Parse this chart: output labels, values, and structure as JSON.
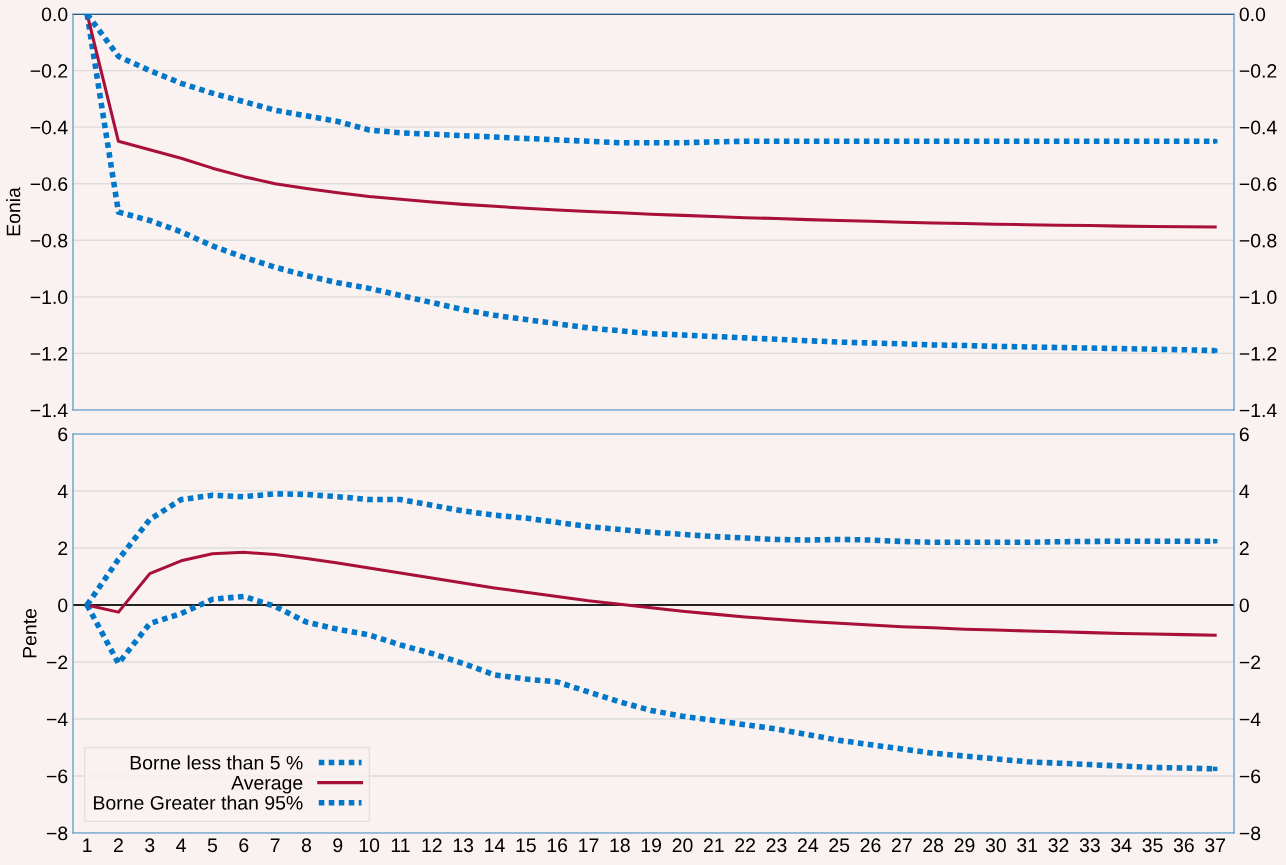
{
  "chart_data": [
    {
      "type": "line",
      "ylabel": "Eonia",
      "categories": [
        "1",
        "2",
        "3",
        "4",
        "5",
        "6",
        "7",
        "8",
        "9",
        "10",
        "11",
        "12",
        "13",
        "14",
        "15",
        "16",
        "17",
        "18",
        "19",
        "20",
        "21",
        "22",
        "23",
        "24",
        "25",
        "26",
        "27",
        "28",
        "29",
        "30",
        "31",
        "32",
        "33",
        "34",
        "35",
        "36",
        "37"
      ],
      "ylim": [
        -1.4,
        0
      ],
      "yticks": [
        {
          "value": -1.4,
          "label": "−1.4"
        },
        {
          "value": -1.2,
          "label": "−1.2"
        },
        {
          "value": -1.0,
          "label": "−1.0"
        },
        {
          "value": -0.8,
          "label": "−0.8"
        },
        {
          "value": -0.6,
          "label": "−0.6"
        },
        {
          "value": -0.4,
          "label": "−0.4"
        },
        {
          "value": -0.2,
          "label": "−0.2"
        },
        {
          "value": 0,
          "label": "0.0"
        }
      ],
      "y2lim": [
        -1.4,
        0
      ],
      "y2ticks": [
        {
          "value": -1.4,
          "label": "−1.4"
        },
        {
          "value": -1.2,
          "label": "−1.2"
        },
        {
          "value": -1.0,
          "label": "−1.0"
        },
        {
          "value": -0.8,
          "label": "−0.8"
        },
        {
          "value": -0.6,
          "label": "−0.6"
        },
        {
          "value": -0.4,
          "label": "−0.4"
        },
        {
          "value": -0.2,
          "label": "−0.2"
        },
        {
          "value": 0,
          "label": "0.0"
        }
      ],
      "tick_labels": "y",
      "grid": true,
      "legend": false,
      "marker": "none",
      "ref_lines": [
        {
          "axis": "y",
          "value": 0,
          "color": "#222222"
        }
      ],
      "series": [
        {
          "color": "#0077c8",
          "line_style": "dotted",
          "values": [
            0,
            -0.7,
            -0.73,
            -0.77,
            -0.82,
            -0.86,
            -0.895,
            -0.925,
            -0.95,
            -0.97,
            -0.995,
            -1.02,
            -1.045,
            -1.065,
            -1.08,
            -1.095,
            -1.11,
            -1.12,
            -1.13,
            -1.135,
            -1.14,
            -1.145,
            -1.15,
            -1.155,
            -1.16,
            -1.163,
            -1.166,
            -1.17,
            -1.172,
            -1.175,
            -1.177,
            -1.179,
            -1.181,
            -1.183,
            -1.185,
            -1.187,
            -1.19
          ]
        },
        {
          "color": "#a8103a",
          "line_style": "solid",
          "values": [
            0,
            -0.45,
            -0.48,
            -0.51,
            -0.545,
            -0.575,
            -0.6,
            -0.617,
            -0.632,
            -0.645,
            -0.655,
            -0.665,
            -0.673,
            -0.68,
            -0.687,
            -0.693,
            -0.698,
            -0.703,
            -0.708,
            -0.712,
            -0.716,
            -0.72,
            -0.723,
            -0.727,
            -0.73,
            -0.733,
            -0.736,
            -0.739,
            -0.741,
            -0.743,
            -0.745,
            -0.747,
            -0.748,
            -0.75,
            -0.751,
            -0.752,
            -0.753
          ]
        },
        {
          "color": "#0077c8",
          "line_style": "dotted",
          "values": [
            0,
            -0.15,
            -0.2,
            -0.245,
            -0.28,
            -0.31,
            -0.34,
            -0.36,
            -0.38,
            -0.41,
            -0.42,
            -0.425,
            -0.43,
            -0.435,
            -0.44,
            -0.445,
            -0.45,
            -0.455,
            -0.455,
            -0.455,
            -0.452,
            -0.45,
            -0.45,
            -0.45,
            -0.45,
            -0.45,
            -0.45,
            -0.45,
            -0.45,
            -0.45,
            -0.45,
            -0.45,
            -0.45,
            -0.45,
            -0.45,
            -0.45,
            -0.45
          ]
        }
      ]
    },
    {
      "type": "line",
      "ylabel": "Pente",
      "categories": [
        "1",
        "2",
        "3",
        "4",
        "5",
        "6",
        "7",
        "8",
        "9",
        "10",
        "11",
        "12",
        "13",
        "14",
        "15",
        "16",
        "17",
        "18",
        "19",
        "20",
        "21",
        "22",
        "23",
        "24",
        "25",
        "26",
        "27",
        "28",
        "29",
        "30",
        "31",
        "32",
        "33",
        "34",
        "35",
        "36",
        "37"
      ],
      "ylim": [
        -8,
        6
      ],
      "yticks": [
        {
          "value": -8,
          "label": "−8"
        },
        {
          "value": -6,
          "label": "−6"
        },
        {
          "value": -4,
          "label": "−4"
        },
        {
          "value": -2,
          "label": "−2"
        },
        0,
        2,
        4,
        6
      ],
      "y2lim": [
        -8,
        6
      ],
      "y2ticks": [
        {
          "value": -8,
          "label": "−8"
        },
        {
          "value": -6,
          "label": "−6"
        },
        {
          "value": -4,
          "label": "−4"
        },
        {
          "value": -2,
          "label": "−2"
        },
        0,
        2,
        4,
        6
      ],
      "grid": true,
      "legend": "bottom left",
      "marker": "none",
      "ref_lines": [
        {
          "axis": "y",
          "value": 0,
          "color": "#222222"
        }
      ],
      "series": [
        {
          "name": "Borne less than 5 %",
          "color": "#0077c8",
          "line_style": "dotted",
          "values": [
            0,
            -2.05,
            -0.65,
            -0.3,
            0.2,
            0.3,
            -0.05,
            -0.6,
            -0.85,
            -1.05,
            -1.4,
            -1.7,
            -2.05,
            -2.45,
            -2.6,
            -2.7,
            -3.05,
            -3.4,
            -3.7,
            -3.9,
            -4.05,
            -4.2,
            -4.35,
            -4.55,
            -4.75,
            -4.9,
            -5.05,
            -5.2,
            -5.3,
            -5.4,
            -5.5,
            -5.55,
            -5.6,
            -5.65,
            -5.7,
            -5.72,
            -5.75
          ]
        },
        {
          "name": "Average",
          "color": "#a8103a",
          "line_style": "solid",
          "values": [
            0,
            -0.25,
            1.1,
            1.55,
            1.8,
            1.85,
            1.77,
            1.63,
            1.47,
            1.3,
            1.12,
            0.95,
            0.77,
            0.6,
            0.45,
            0.3,
            0.15,
            0.03,
            -0.1,
            -0.22,
            -0.32,
            -0.42,
            -0.5,
            -0.58,
            -0.64,
            -0.7,
            -0.76,
            -0.8,
            -0.85,
            -0.88,
            -0.91,
            -0.94,
            -0.97,
            -1.0,
            -1.02,
            -1.04,
            -1.06
          ]
        },
        {
          "name": "Borne Greater than 95%",
          "color": "#0077c8",
          "line_style": "dotted",
          "values": [
            0,
            1.6,
            3.0,
            3.7,
            3.85,
            3.8,
            3.9,
            3.88,
            3.8,
            3.7,
            3.7,
            3.5,
            3.3,
            3.15,
            3.05,
            2.9,
            2.75,
            2.65,
            2.55,
            2.48,
            2.4,
            2.35,
            2.3,
            2.28,
            2.3,
            2.28,
            2.23,
            2.2,
            2.2,
            2.2,
            2.2,
            2.22,
            2.23,
            2.24,
            2.24,
            2.24,
            2.24
          ]
        }
      ]
    }
  ]
}
